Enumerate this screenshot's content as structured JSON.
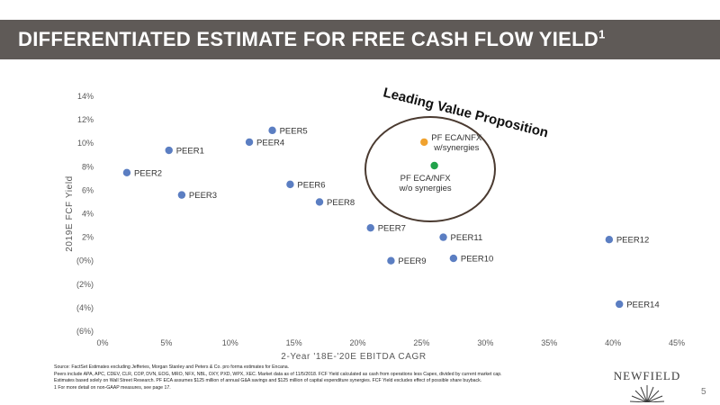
{
  "header": {
    "title": "DIFFERENTIATED ESTIMATE FOR FREE CASH FLOW YIELD",
    "title_sup": "1"
  },
  "chart_data": {
    "type": "scatter",
    "xlabel": "2-Year '18E-'20E EBITDA CAGR",
    "ylabel": "2019E FCF Yield",
    "xlim": [
      0,
      45
    ],
    "ylim": [
      -6,
      14
    ],
    "x_ticks": [
      0,
      5,
      10,
      15,
      20,
      25,
      30,
      35,
      40,
      45
    ],
    "x_tick_labels": [
      "0%",
      "5%",
      "10%",
      "15%",
      "20%",
      "25%",
      "30%",
      "35%",
      "40%",
      "45%"
    ],
    "y_ticks": [
      14,
      12,
      10,
      8,
      6,
      4,
      2,
      0,
      -2,
      -4,
      -6
    ],
    "y_tick_labels": [
      "14%",
      "12%",
      "10%",
      "8%",
      "6%",
      "4%",
      "2%",
      "(0%)",
      "(2%)",
      "(4%)",
      "(6%)"
    ],
    "grid": false,
    "points": [
      {
        "label": "PEER1",
        "x": 5.2,
        "y": 9.4,
        "color": "#5b7ec2"
      },
      {
        "label": "PEER2",
        "x": 1.9,
        "y": 7.5,
        "color": "#5b7ec2"
      },
      {
        "label": "PEER3",
        "x": 6.2,
        "y": 5.6,
        "color": "#5b7ec2"
      },
      {
        "label": "PEER4",
        "x": 11.5,
        "y": 10.1,
        "color": "#5b7ec2"
      },
      {
        "label": "PEER5",
        "x": 13.3,
        "y": 11.1,
        "color": "#5b7ec2"
      },
      {
        "label": "PEER6",
        "x": 14.7,
        "y": 6.5,
        "color": "#5b7ec2"
      },
      {
        "label": "PEER8",
        "x": 17.0,
        "y": 5.0,
        "color": "#5b7ec2"
      },
      {
        "label": "PEER7",
        "x": 21.0,
        "y": 2.8,
        "color": "#5b7ec2"
      },
      {
        "label": "PEER9",
        "x": 22.6,
        "y": 0.0,
        "color": "#5b7ec2"
      },
      {
        "label": "PEER10",
        "x": 27.5,
        "y": 0.2,
        "color": "#5b7ec2"
      },
      {
        "label": "PEER11",
        "x": 26.7,
        "y": 2.0,
        "color": "#5b7ec2"
      },
      {
        "label": "PEER12",
        "x": 39.7,
        "y": 1.8,
        "color": "#5b7ec2"
      },
      {
        "label": "PEER14",
        "x": 40.5,
        "y": -3.7,
        "color": "#5b7ec2"
      },
      {
        "label": "PF ECA/NFX\nw/synergies",
        "x": 25.2,
        "y": 10.1,
        "color": "#f0a22e"
      },
      {
        "label": "PF ECA/NFX\nw/o synergies",
        "x": 26.0,
        "y": 8.1,
        "color": "#21a24a"
      }
    ],
    "annotation": "Leading Value Proposition"
  },
  "footnotes": [
    "Source: FactSet Estimates excluding Jefferies, Morgan Stanley and Peters & Co. pro forma estimates for Encana.",
    "Peers include APA, APC, CDEV, CLR, COP, DVN, EOG, MRO, NFX, NBL, OXY, PXD, WPX, XEC. Market data as of 11/5/2018. FCF Yield calculated as cash from operations less Capex, divided by current market cap.",
    "Estimates based solely on Wall Street Research. PF ECA assumes $125 million of annual G&A savings and $125 million of capital expenditure synergies. FCF Yield excludes effect of possible share buyback.",
    "1 For more detail on non-GAAP measures, see page 17."
  ],
  "logo": {
    "text": "NEWFIELD",
    "icon": "sunburst-logo-icon"
  },
  "page_number": "5"
}
